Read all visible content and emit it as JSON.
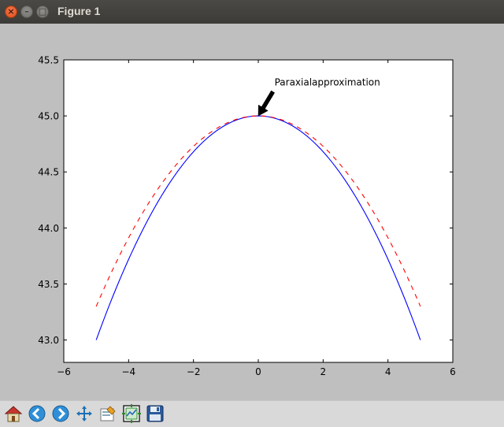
{
  "window": {
    "title": "Figure 1",
    "controls": {
      "close": "×",
      "minimize": "–",
      "maximize": "□"
    }
  },
  "toolbar": {
    "buttons": [
      {
        "name": "home",
        "icon": "home-icon"
      },
      {
        "name": "back",
        "icon": "back-arrow-icon"
      },
      {
        "name": "forward",
        "icon": "forward-arrow-icon"
      },
      {
        "name": "pan",
        "icon": "move-arrows-icon"
      },
      {
        "name": "zoom",
        "icon": "zoom-rect-icon"
      },
      {
        "name": "subplots",
        "icon": "subplots-config-icon"
      },
      {
        "name": "save",
        "icon": "floppy-disk-icon"
      }
    ]
  },
  "chart_data": {
    "type": "line",
    "title": "",
    "xlabel": "",
    "ylabel": "",
    "xlim": [
      -6,
      6
    ],
    "ylim": [
      42.8,
      45.5
    ],
    "xticks": [
      -6,
      -4,
      -2,
      0,
      2,
      4,
      6
    ],
    "xtick_labels": [
      "−6",
      "−4",
      "−2",
      "0",
      "2",
      "4",
      "6"
    ],
    "yticks": [
      43.0,
      43.5,
      44.0,
      44.5,
      45.0,
      45.5
    ],
    "ytick_labels": [
      "43.0",
      "43.5",
      "44.0",
      "44.5",
      "45.0",
      "45.5"
    ],
    "grid": false,
    "series": [
      {
        "color": "#0000ff",
        "style": "solid",
        "x": [
          -5,
          -4,
          -3,
          -2,
          -1,
          0,
          1,
          2,
          3,
          4,
          5
        ],
        "y": [
          43.0,
          43.72,
          44.28,
          44.68,
          44.92,
          45.0,
          44.92,
          44.68,
          44.28,
          43.72,
          43.0
        ]
      },
      {
        "color": "#ff0000",
        "style": "dashed",
        "x": [
          -5,
          -4,
          -3,
          -2,
          -1,
          0,
          1,
          2,
          3,
          4,
          5
        ],
        "y": [
          43.3,
          43.91,
          44.39,
          44.73,
          44.93,
          45.0,
          44.93,
          44.73,
          44.39,
          43.91,
          43.3
        ]
      }
    ],
    "annotation": {
      "text": "Paraxialapproximation",
      "point": [
        0,
        45.0
      ],
      "text_position": [
        0.5,
        45.3
      ]
    }
  }
}
